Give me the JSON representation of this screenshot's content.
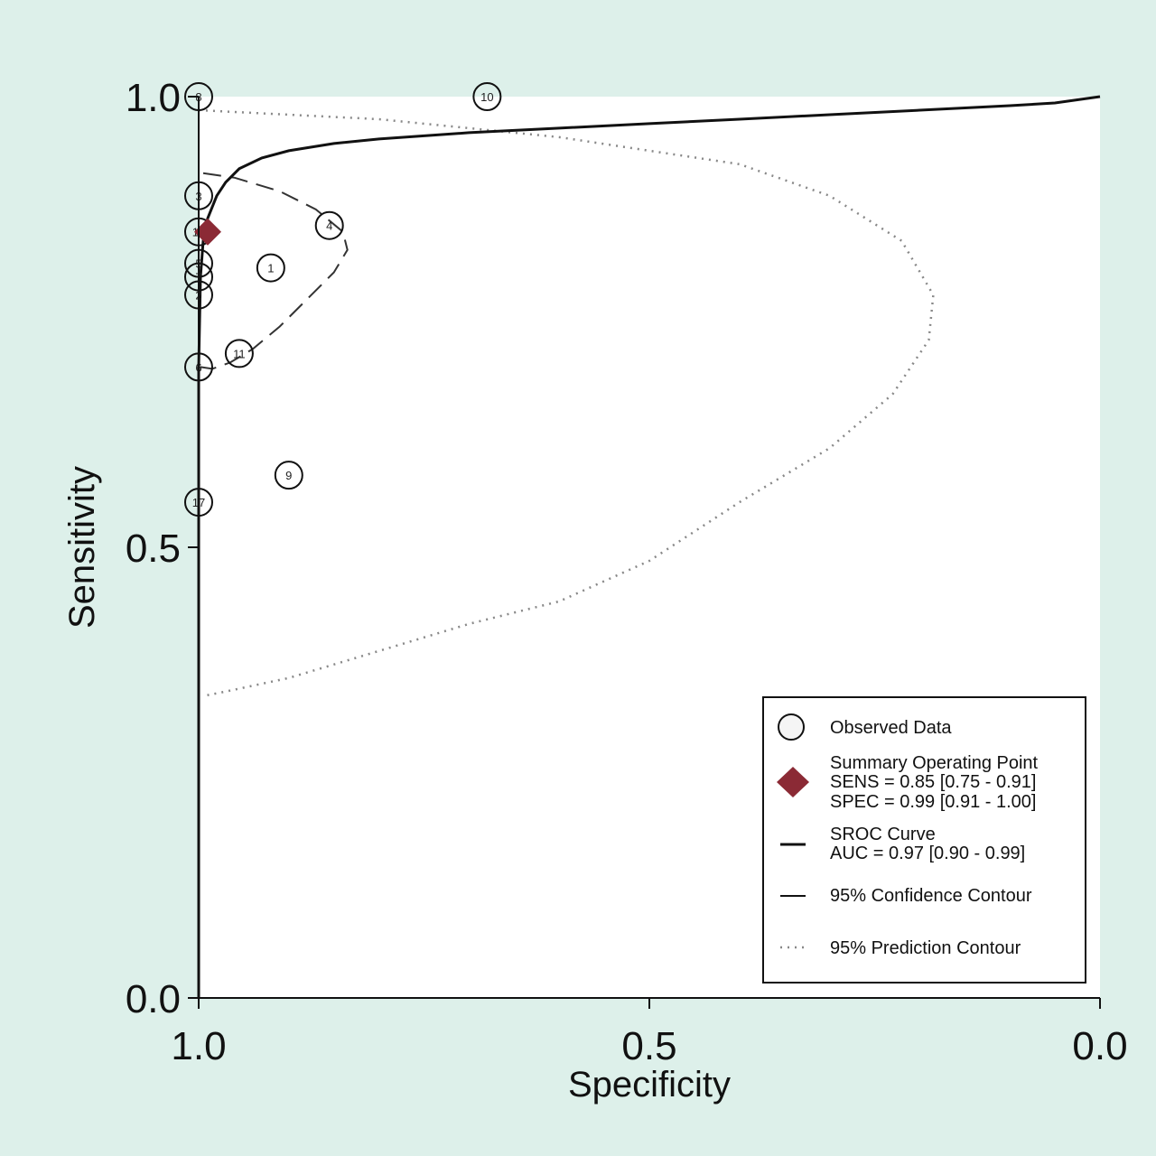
{
  "chart_data": {
    "type": "scatter",
    "title": "",
    "xlabel": "Specificity",
    "ylabel": "Sensitivity",
    "xlim": [
      1.0,
      0.0
    ],
    "ylim": [
      0.0,
      1.0
    ],
    "x_ticks": [
      "1.0",
      "0.5",
      "0.0"
    ],
    "y_ticks": [
      "0.0",
      "0.5",
      "1.0"
    ],
    "x_tick_values": [
      1.0,
      0.5,
      0.0
    ],
    "y_tick_values": [
      0.0,
      0.5,
      1.0
    ],
    "grid": false,
    "legend_position": "bottom-right",
    "observed_data": [
      {
        "label": "10",
        "specificity": 0.68,
        "sensitivity": 1.0
      },
      {
        "label": "8",
        "specificity": 1.0,
        "sensitivity": 1.0
      },
      {
        "label": "3",
        "specificity": 1.0,
        "sensitivity": 0.89
      },
      {
        "label": "4",
        "specificity": 0.855,
        "sensitivity": 0.857
      },
      {
        "label": "16",
        "specificity": 1.0,
        "sensitivity": 0.85
      },
      {
        "label": "5",
        "specificity": 1.0,
        "sensitivity": 0.815
      },
      {
        "label": "1",
        "specificity": 0.92,
        "sensitivity": 0.81
      },
      {
        "label": "7",
        "specificity": 1.0,
        "sensitivity": 0.8
      },
      {
        "label": "2",
        "specificity": 1.0,
        "sensitivity": 0.78
      },
      {
        "label": "11",
        "specificity": 0.955,
        "sensitivity": 0.715
      },
      {
        "label": "6",
        "specificity": 1.0,
        "sensitivity": 0.7
      },
      {
        "label": "9",
        "specificity": 0.9,
        "sensitivity": 0.58
      },
      {
        "label": "17",
        "specificity": 1.0,
        "sensitivity": 0.55
      }
    ],
    "summary_point": {
      "specificity": 0.99,
      "sensitivity": 0.85
    },
    "sroc_curve": [
      [
        1.0,
        0.0
      ],
      [
        1.0,
        0.7
      ],
      [
        0.998,
        0.8
      ],
      [
        0.995,
        0.84
      ],
      [
        0.99,
        0.865
      ],
      [
        0.98,
        0.89
      ],
      [
        0.97,
        0.905
      ],
      [
        0.955,
        0.92
      ],
      [
        0.93,
        0.932
      ],
      [
        0.9,
        0.94
      ],
      [
        0.85,
        0.948
      ],
      [
        0.8,
        0.953
      ],
      [
        0.7,
        0.96
      ],
      [
        0.6,
        0.965
      ],
      [
        0.5,
        0.97
      ],
      [
        0.4,
        0.975
      ],
      [
        0.3,
        0.98
      ],
      [
        0.2,
        0.985
      ],
      [
        0.1,
        0.99
      ],
      [
        0.05,
        0.993
      ],
      [
        0.0,
        1.0
      ]
    ],
    "confidence_contour": [
      [
        0.995,
        0.915
      ],
      [
        0.96,
        0.91
      ],
      [
        0.91,
        0.895
      ],
      [
        0.87,
        0.875
      ],
      [
        0.84,
        0.85
      ],
      [
        0.835,
        0.83
      ],
      [
        0.85,
        0.805
      ],
      [
        0.88,
        0.775
      ],
      [
        0.91,
        0.745
      ],
      [
        0.94,
        0.72
      ],
      [
        0.965,
        0.705
      ],
      [
        0.985,
        0.698
      ],
      [
        0.998,
        0.7
      ]
    ],
    "prediction_contour": [
      [
        1.0,
        0.985
      ],
      [
        0.9,
        0.98
      ],
      [
        0.8,
        0.975
      ],
      [
        0.7,
        0.965
      ],
      [
        0.6,
        0.955
      ],
      [
        0.5,
        0.94
      ],
      [
        0.4,
        0.925
      ],
      [
        0.3,
        0.89
      ],
      [
        0.22,
        0.84
      ],
      [
        0.185,
        0.78
      ],
      [
        0.19,
        0.73
      ],
      [
        0.23,
        0.67
      ],
      [
        0.3,
        0.61
      ],
      [
        0.4,
        0.55
      ],
      [
        0.5,
        0.485
      ],
      [
        0.6,
        0.44
      ],
      [
        0.7,
        0.415
      ],
      [
        0.8,
        0.385
      ],
      [
        0.9,
        0.355
      ],
      [
        0.97,
        0.34
      ],
      [
        0.995,
        0.335
      ]
    ],
    "legend": {
      "observed": "Observed Data",
      "summary_line1": "Summary Operating Point",
      "summary_line2": "SENS = 0.85 [0.75 - 0.91]",
      "summary_line3": "SPEC = 0.99 [0.91 - 1.00]",
      "sroc_line1": "SROC Curve",
      "sroc_line2": "AUC = 0.97 [0.90 - 0.99]",
      "confidence": "95% Confidence Contour",
      "prediction": "95% Prediction Contour"
    },
    "colors": {
      "background": "#ddf0ea",
      "plot_area": "#ffffff",
      "summary_marker": "#8b2a35",
      "curve": "#111111",
      "confidence": "#333333",
      "prediction": "#888888"
    }
  }
}
